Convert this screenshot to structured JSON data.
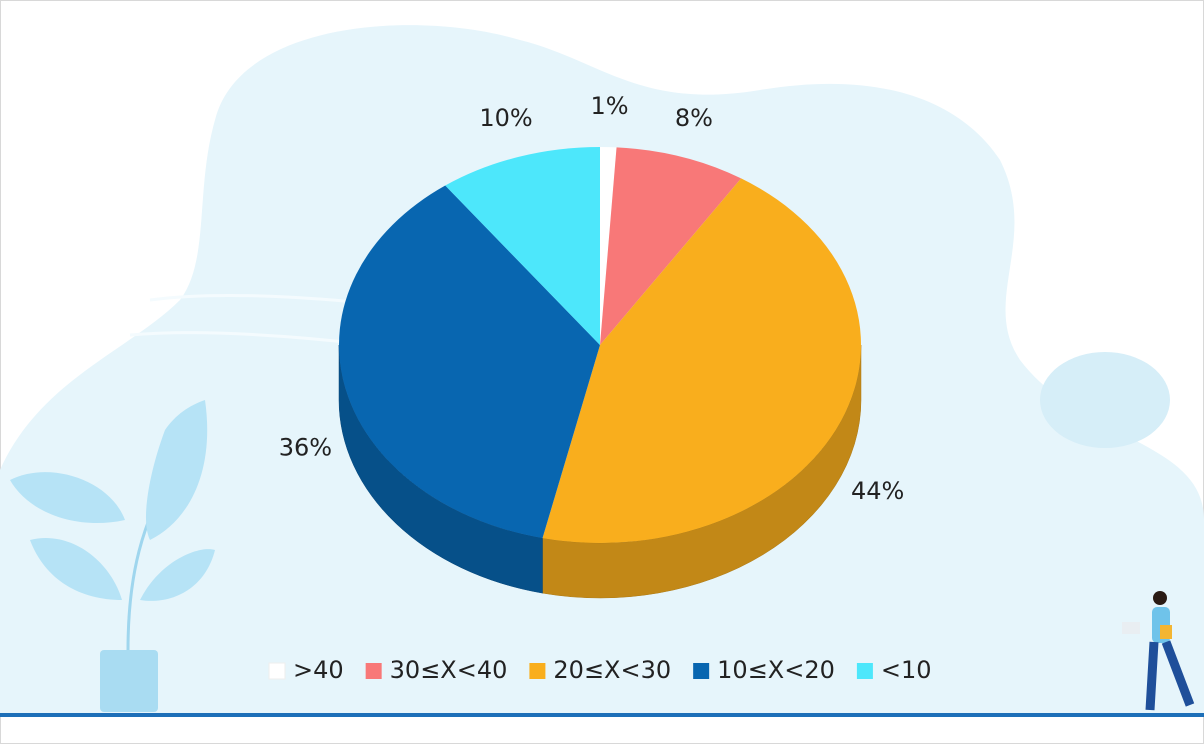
{
  "chart_data": {
    "type": "pie",
    "categories": [
      ">40",
      "30≤X<40",
      "20≤X<30",
      "10≤X<20",
      "<10"
    ],
    "values": [
      1,
      8,
      44,
      36,
      10
    ],
    "value_labels": [
      "1%",
      "8%",
      "44%",
      "36%",
      "10%"
    ],
    "colors": [
      "#ffffff",
      "#f87878",
      "#f9ae1d",
      "#0866b0",
      "#4de7fb"
    ],
    "legend": "bottom"
  }
}
